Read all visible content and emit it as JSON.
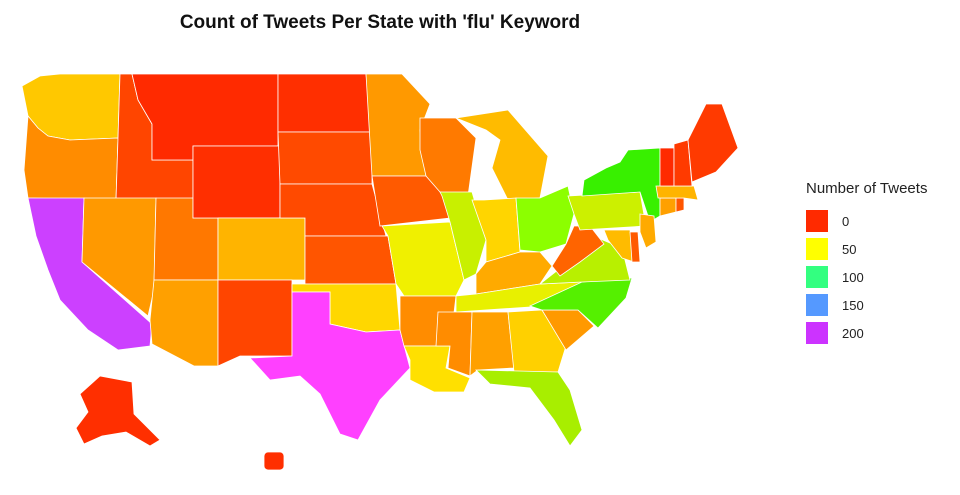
{
  "title": "Count of Tweets Per State with 'flu' Keyword",
  "legend": {
    "title": "Number of Tweets",
    "items": [
      {
        "label": "0",
        "color": "#ff2a00"
      },
      {
        "label": "50",
        "color": "#ffff00"
      },
      {
        "label": "100",
        "color": "#33ff80"
      },
      {
        "label": "150",
        "color": "#5599ff"
      },
      {
        "label": "200",
        "color": "#cc33ff"
      }
    ]
  },
  "map_data": {
    "type": "choropleth",
    "region": "United States",
    "color_scale": "0 red, 50 yellow, 100 green, 150 blue, 200 purple",
    "states": [
      {
        "state": "Washington",
        "color": "#ffc800"
      },
      {
        "state": "Oregon",
        "color": "#ff8c00"
      },
      {
        "state": "California",
        "color": "#cc40ff"
      },
      {
        "state": "Idaho",
        "color": "#ff4500"
      },
      {
        "state": "Nevada",
        "color": "#ff9900"
      },
      {
        "state": "Utah",
        "color": "#ff7800"
      },
      {
        "state": "Arizona",
        "color": "#ffa000"
      },
      {
        "state": "Montana",
        "color": "#ff2a00"
      },
      {
        "state": "Wyoming",
        "color": "#ff2f00"
      },
      {
        "state": "Colorado",
        "color": "#ffb400"
      },
      {
        "state": "New Mexico",
        "color": "#ff4500"
      },
      {
        "state": "North Dakota",
        "color": "#ff2f00"
      },
      {
        "state": "South Dakota",
        "color": "#ff4a00"
      },
      {
        "state": "Nebraska",
        "color": "#ff4a00"
      },
      {
        "state": "Kansas",
        "color": "#ff5500"
      },
      {
        "state": "Oklahoma",
        "color": "#ffd700"
      },
      {
        "state": "Texas",
        "color": "#ff40ff"
      },
      {
        "state": "Minnesota",
        "color": "#ff9900"
      },
      {
        "state": "Iowa",
        "color": "#ff5a00"
      },
      {
        "state": "Missouri",
        "color": "#f0f000"
      },
      {
        "state": "Arkansas",
        "color": "#ff8c00"
      },
      {
        "state": "Louisiana",
        "color": "#ffe000"
      },
      {
        "state": "Wisconsin",
        "color": "#ff7a00"
      },
      {
        "state": "Illinois",
        "color": "#c8f000"
      },
      {
        "state": "Michigan",
        "color": "#ffbb00"
      },
      {
        "state": "Indiana",
        "color": "#ffd500"
      },
      {
        "state": "Ohio",
        "color": "#8cff00"
      },
      {
        "state": "Kentucky",
        "color": "#ffaa00"
      },
      {
        "state": "Tennessee",
        "color": "#e8f000"
      },
      {
        "state": "Mississippi",
        "color": "#ff8c00"
      },
      {
        "state": "Alabama",
        "color": "#ffa000"
      },
      {
        "state": "Georgia",
        "color": "#ffd000"
      },
      {
        "state": "Florida",
        "color": "#a8ee00"
      },
      {
        "state": "South Carolina",
        "color": "#ff9900"
      },
      {
        "state": "North Carolina",
        "color": "#55f000"
      },
      {
        "state": "Virginia",
        "color": "#b8f000"
      },
      {
        "state": "West Virginia",
        "color": "#ff6400"
      },
      {
        "state": "Pennsylvania",
        "color": "#ccf000"
      },
      {
        "state": "New York",
        "color": "#38f000"
      },
      {
        "state": "Maryland",
        "color": "#ffbb00"
      },
      {
        "state": "Delaware",
        "color": "#ff5a00"
      },
      {
        "state": "New Jersey",
        "color": "#ffaa00"
      },
      {
        "state": "Connecticut",
        "color": "#ffa000"
      },
      {
        "state": "Rhode Island",
        "color": "#ff5500"
      },
      {
        "state": "Massachusetts",
        "color": "#ffb400"
      },
      {
        "state": "Vermont",
        "color": "#ff2a00"
      },
      {
        "state": "New Hampshire",
        "color": "#ff3a00"
      },
      {
        "state": "Maine",
        "color": "#ff3a00"
      },
      {
        "state": "Alaska",
        "color": "#ff2f00"
      },
      {
        "state": "Hawaii",
        "color": "#ff2f00"
      }
    ]
  }
}
